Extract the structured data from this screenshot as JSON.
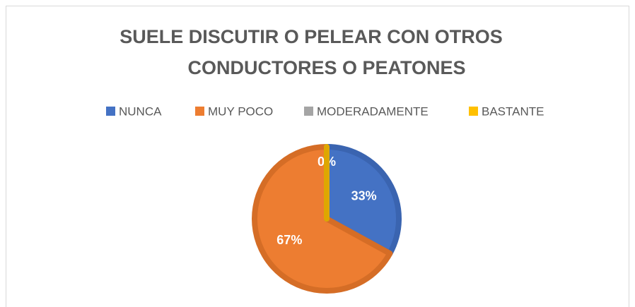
{
  "chart_data": {
    "type": "pie",
    "title": [
      "SUELE DISCUTIR O PELEAR CON OTROS",
      "CONDUCTORES  O PEATONES"
    ],
    "categories": [
      "NUNCA",
      "MUY POCO",
      "MODERADAMENTE",
      "BASTANTE"
    ],
    "values": [
      33,
      67,
      0,
      0
    ],
    "value_labels": [
      "33%",
      "67%",
      "0%",
      null
    ],
    "colors": [
      "#4472c4",
      "#ed7d31",
      "#a5a5a5",
      "#ffc000"
    ],
    "legend": "top"
  }
}
